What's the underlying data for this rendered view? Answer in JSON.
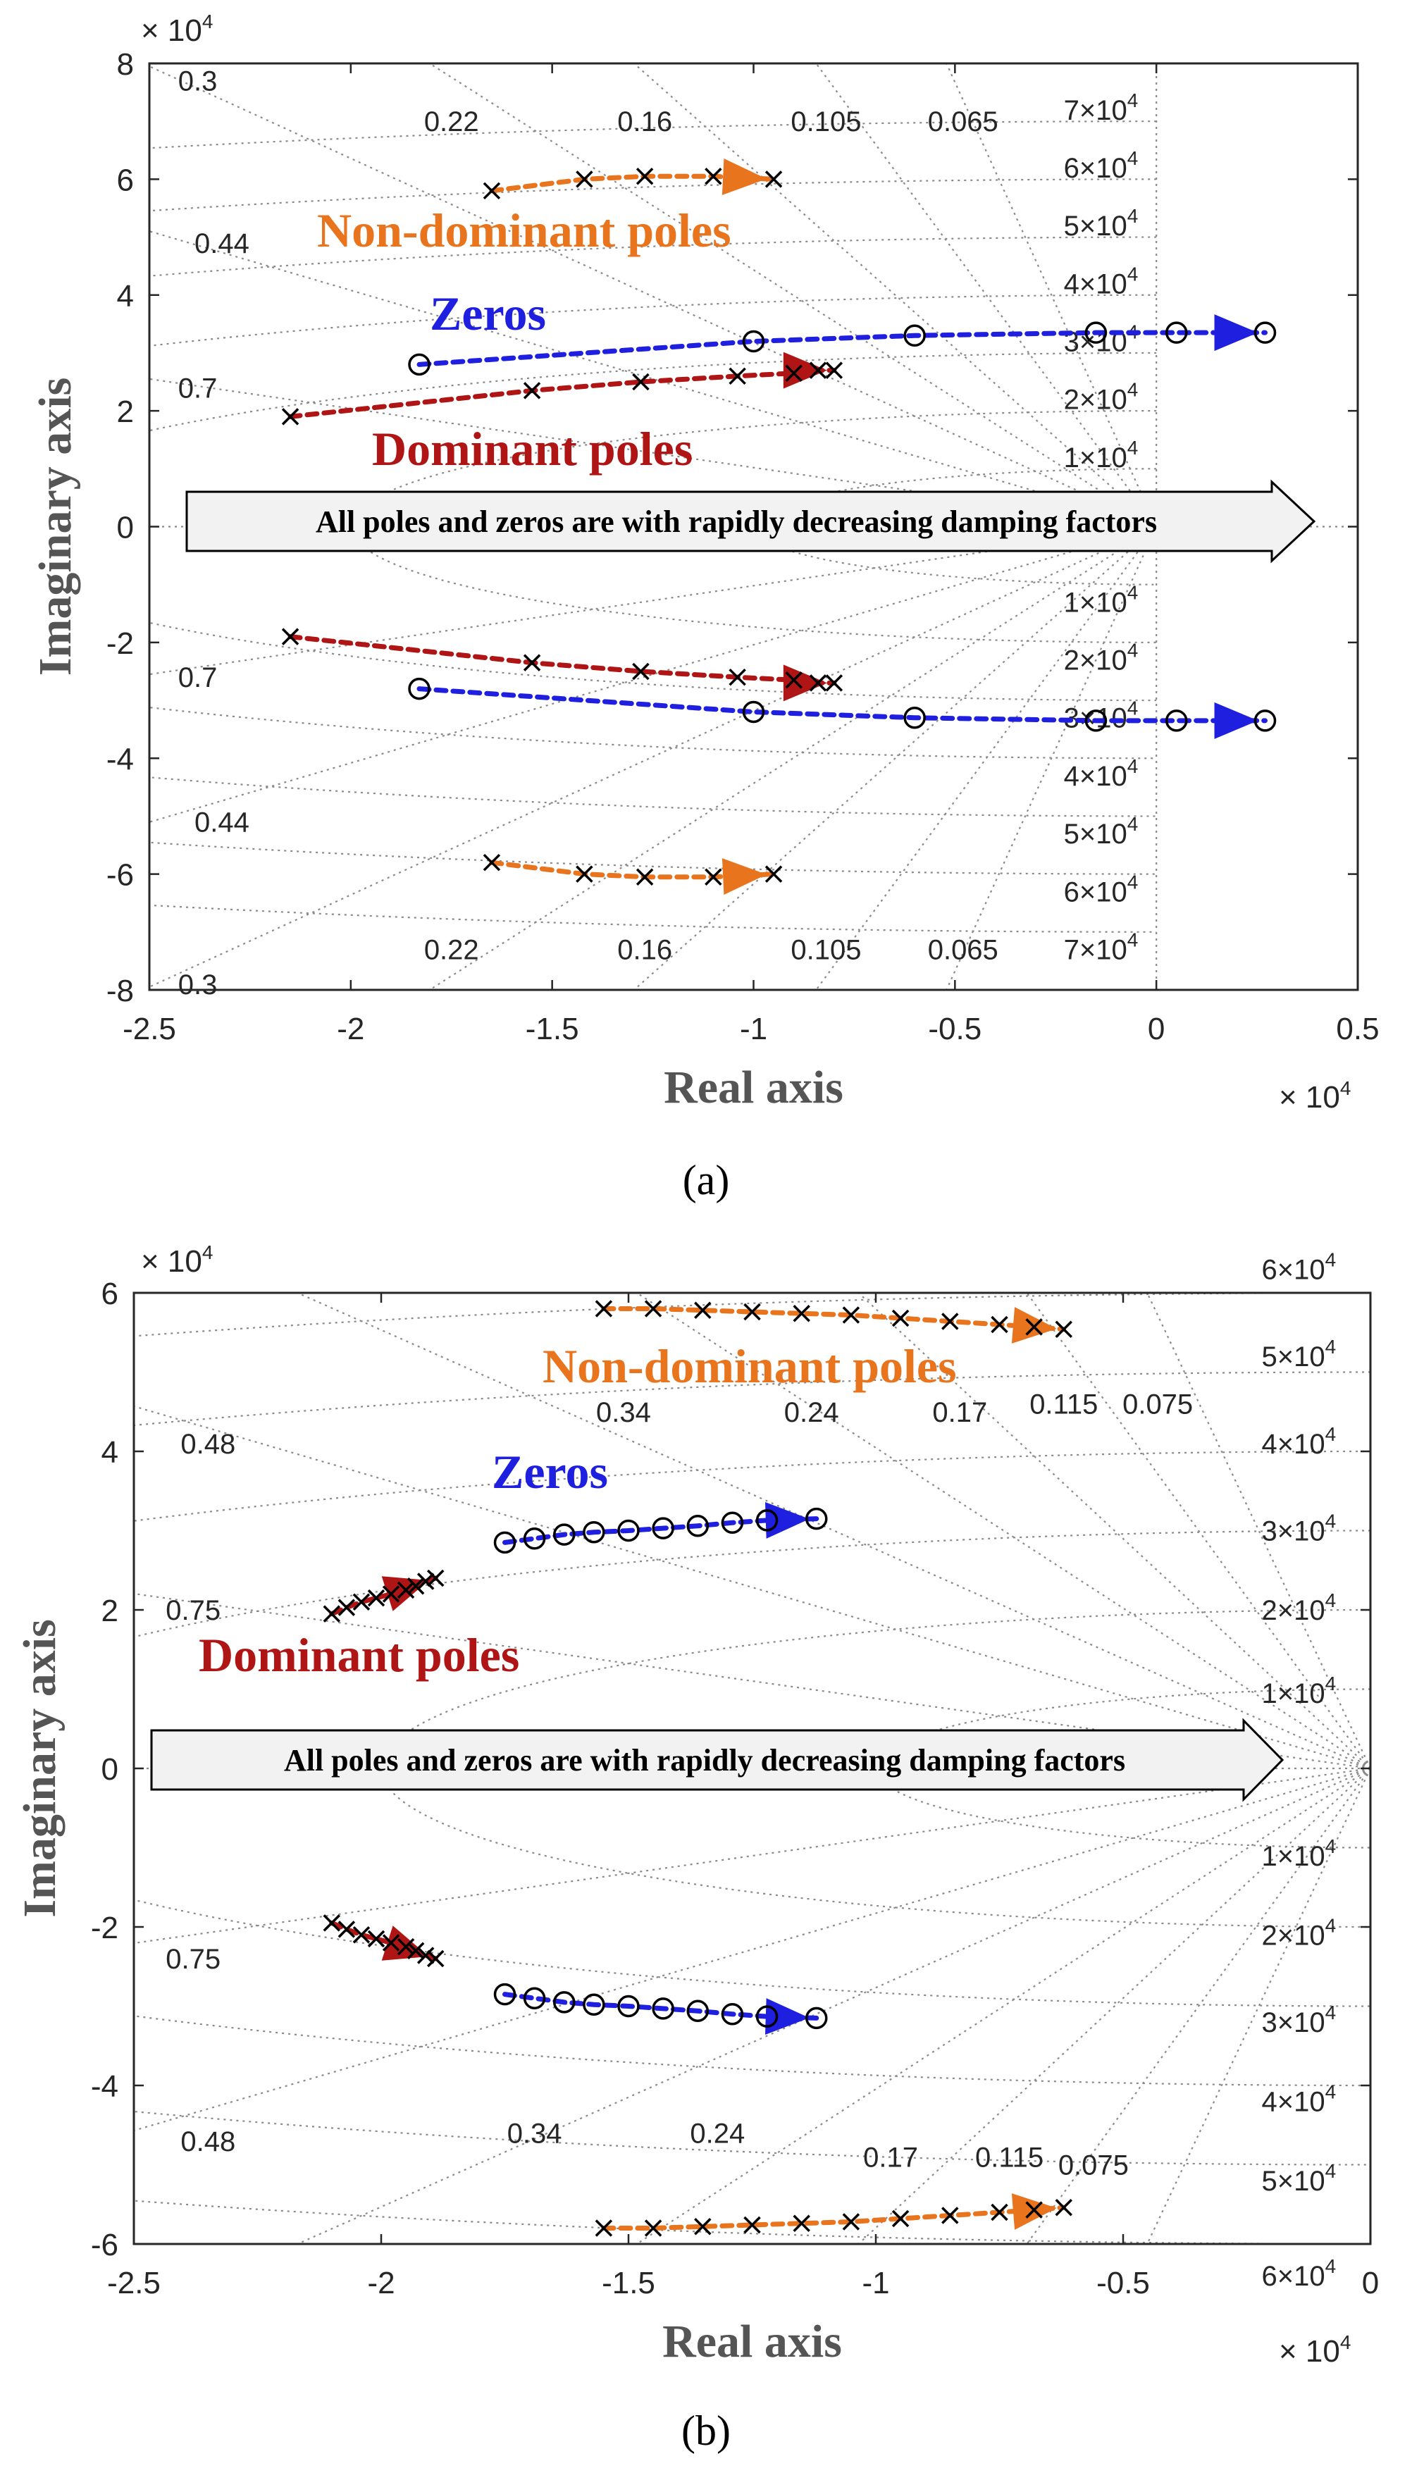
{
  "chart_data": [
    {
      "type": "pole-zero map",
      "panel": "(a)",
      "xlabel": "Real axis",
      "ylabel": "Imaginary axis",
      "x_exponent": "× 10",
      "x_exponent_power": "4",
      "y_exponent": "× 10",
      "y_exponent_power": "4",
      "xlim": [
        -2.5,
        0.5
      ],
      "ylim": [
        -8,
        8
      ],
      "x_ticks": [
        "-2.5",
        "-2",
        "-1.5",
        "-1",
        "-0.5",
        "0",
        "0.5"
      ],
      "x_tick_values": [
        -2.5,
        -2,
        -1.5,
        -1,
        -0.5,
        0,
        0.5
      ],
      "y_ticks": [
        "8",
        "6",
        "4",
        "2",
        "0",
        "-2",
        "-4",
        "-6",
        "-8"
      ],
      "y_tick_values": [
        8,
        6,
        4,
        2,
        0,
        -2,
        -4,
        -6,
        -8
      ],
      "damping_labels": [
        {
          "text": "0.3",
          "x": -2.38,
          "y": 7.7
        },
        {
          "text": "0.22",
          "x": -1.75,
          "y": 7.0
        },
        {
          "text": "0.16",
          "x": -1.27,
          "y": 7.0
        },
        {
          "text": "0.105",
          "x": -0.82,
          "y": 7.0
        },
        {
          "text": "0.065",
          "x": -0.48,
          "y": 7.0
        },
        {
          "text": "0.44",
          "x": -2.32,
          "y": 4.9
        },
        {
          "text": "0.7",
          "x": -2.38,
          "y": 2.4
        },
        {
          "text": "0.7",
          "x": -2.38,
          "y": -2.6
        },
        {
          "text": "0.44",
          "x": -2.32,
          "y": -5.1
        },
        {
          "text": "0.3",
          "x": -2.38,
          "y": -7.9
        },
        {
          "text": "0.22",
          "x": -1.75,
          "y": -7.3
        },
        {
          "text": "0.16",
          "x": -1.27,
          "y": -7.3
        },
        {
          "text": "0.105",
          "x": -0.82,
          "y": -7.3
        },
        {
          "text": "0.065",
          "x": -0.48,
          "y": -7.3
        }
      ],
      "freq_labels": [
        {
          "base": "7×10",
          "exp": "4",
          "y": 7.2
        },
        {
          "base": "6×10",
          "exp": "4",
          "y": 6.2
        },
        {
          "base": "5×10",
          "exp": "4",
          "y": 5.2
        },
        {
          "base": "4×10",
          "exp": "4",
          "y": 4.2
        },
        {
          "base": "3×10",
          "exp": "4",
          "y": 3.2
        },
        {
          "base": "2×10",
          "exp": "4",
          "y": 2.2
        },
        {
          "base": "1×10",
          "exp": "4",
          "y": 1.2
        },
        {
          "base": "1×10",
          "exp": "4",
          "y": -1.3
        },
        {
          "base": "2×10",
          "exp": "4",
          "y": -2.3
        },
        {
          "base": "3×10",
          "exp": "4",
          "y": -3.3
        },
        {
          "base": "4×10",
          "exp": "4",
          "y": -4.3
        },
        {
          "base": "5×10",
          "exp": "4",
          "y": -5.3
        },
        {
          "base": "6×10",
          "exp": "4",
          "y": -6.3
        },
        {
          "base": "7×10",
          "exp": "4",
          "y": -7.3
        }
      ],
      "series": [
        {
          "name": "Non-dominant poles",
          "marker": "x",
          "color": "#E8741E",
          "points": [
            [
              -1.65,
              5.8
            ],
            [
              -1.42,
              6.0
            ],
            [
              -1.27,
              6.05
            ],
            [
              -1.1,
              6.05
            ],
            [
              -0.95,
              6.0
            ]
          ],
          "mirror": true
        },
        {
          "name": "Zeros",
          "marker": "o",
          "color": "#1F1FE0",
          "points": [
            [
              -1.83,
              2.8
            ],
            [
              -1.0,
              3.2
            ],
            [
              -0.6,
              3.3
            ],
            [
              -0.15,
              3.35
            ],
            [
              0.05,
              3.35
            ],
            [
              0.27,
              3.35
            ]
          ],
          "mirror": true
        },
        {
          "name": "Dominant poles",
          "marker": "x",
          "color": "#B01515",
          "points": [
            [
              -2.15,
              1.9
            ],
            [
              -1.55,
              2.35
            ],
            [
              -1.28,
              2.5
            ],
            [
              -1.04,
              2.6
            ],
            [
              -0.9,
              2.65
            ],
            [
              -0.84,
              2.7
            ],
            [
              -0.8,
              2.7
            ]
          ],
          "mirror": true
        }
      ],
      "annotations": {
        "nondominant": "Non-dominant poles",
        "zeros": "Zeros",
        "dominant": "Dominant poles",
        "banner": "All poles and zeros are with rapidly decreasing damping factors"
      },
      "caption": "(a)"
    },
    {
      "type": "pole-zero map",
      "panel": "(b)",
      "xlabel": "Real axis",
      "ylabel": "Imaginary axis",
      "x_exponent": "× 10",
      "x_exponent_power": "4",
      "y_exponent": "× 10",
      "y_exponent_power": "4",
      "xlim": [
        -2.5,
        0
      ],
      "ylim": [
        -6,
        6
      ],
      "x_ticks": [
        "-2.5",
        "-2",
        "-1.5",
        "-1",
        "-0.5",
        "0"
      ],
      "x_tick_values": [
        -2.5,
        -2,
        -1.5,
        -1,
        -0.5,
        0
      ],
      "y_ticks": [
        "6",
        "4",
        "2",
        "0",
        "-2",
        "-4",
        "-6"
      ],
      "y_tick_values": [
        6,
        4,
        2,
        0,
        -2,
        -4,
        -6
      ],
      "damping_labels": [
        {
          "text": "0.48",
          "x": -2.35,
          "y": 4.1
        },
        {
          "text": "0.34",
          "x": -1.51,
          "y": 4.5
        },
        {
          "text": "0.24",
          "x": -1.13,
          "y": 4.5
        },
        {
          "text": "0.17",
          "x": -0.83,
          "y": 4.5
        },
        {
          "text": "0.115",
          "x": -0.62,
          "y": 4.6
        },
        {
          "text": "0.075",
          "x": -0.43,
          "y": 4.6
        },
        {
          "text": "0.75",
          "x": -2.38,
          "y": 2.0
        },
        {
          "text": "0.75",
          "x": -2.38,
          "y": -2.4
        },
        {
          "text": "0.48",
          "x": -2.35,
          "y": -4.7
        },
        {
          "text": "0.34",
          "x": -1.69,
          "y": -4.6
        },
        {
          "text": "0.24",
          "x": -1.32,
          "y": -4.6
        },
        {
          "text": "0.17",
          "x": -0.97,
          "y": -4.9
        },
        {
          "text": "0.115",
          "x": -0.73,
          "y": -4.9
        },
        {
          "text": "0.075",
          "x": -0.56,
          "y": -5.0
        }
      ],
      "freq_labels": [
        {
          "base": "6×10",
          "exp": "4",
          "y": 6.3
        },
        {
          "base": "5×10",
          "exp": "4",
          "y": 5.2
        },
        {
          "base": "4×10",
          "exp": "4",
          "y": 4.1
        },
        {
          "base": "3×10",
          "exp": "4",
          "y": 3.0
        },
        {
          "base": "2×10",
          "exp": "4",
          "y": 2.0
        },
        {
          "base": "1×10",
          "exp": "4",
          "y": 0.95
        },
        {
          "base": "1×10",
          "exp": "4",
          "y": -1.1
        },
        {
          "base": "2×10",
          "exp": "4",
          "y": -2.1
        },
        {
          "base": "3×10",
          "exp": "4",
          "y": -3.2
        },
        {
          "base": "4×10",
          "exp": "4",
          "y": -4.2
        },
        {
          "base": "5×10",
          "exp": "4",
          "y": -5.2
        },
        {
          "base": "6×10",
          "exp": "4",
          "y": -6.4
        }
      ],
      "series": [
        {
          "name": "Non-dominant poles",
          "marker": "x",
          "color": "#E8741E",
          "points": [
            [
              -1.55,
              5.8
            ],
            [
              -1.45,
              5.8
            ],
            [
              -1.35,
              5.78
            ],
            [
              -1.25,
              5.76
            ],
            [
              -1.15,
              5.74
            ],
            [
              -1.05,
              5.72
            ],
            [
              -0.95,
              5.68
            ],
            [
              -0.85,
              5.64
            ],
            [
              -0.75,
              5.6
            ],
            [
              -0.68,
              5.57
            ],
            [
              -0.62,
              5.54
            ]
          ],
          "mirror": true
        },
        {
          "name": "Zeros",
          "marker": "o",
          "color": "#1F1FE0",
          "points": [
            [
              -1.75,
              2.85
            ],
            [
              -1.69,
              2.9
            ],
            [
              -1.63,
              2.95
            ],
            [
              -1.57,
              2.98
            ],
            [
              -1.5,
              3.0
            ],
            [
              -1.43,
              3.03
            ],
            [
              -1.36,
              3.06
            ],
            [
              -1.29,
              3.1
            ],
            [
              -1.22,
              3.13
            ],
            [
              -1.12,
              3.15
            ]
          ],
          "mirror": true
        },
        {
          "name": "Dominant poles",
          "marker": "x",
          "color": "#B01515",
          "points": [
            [
              -2.1,
              1.95
            ],
            [
              -2.07,
              2.03
            ],
            [
              -2.04,
              2.1
            ],
            [
              -2.01,
              2.15
            ],
            [
              -1.98,
              2.2
            ],
            [
              -1.95,
              2.25
            ],
            [
              -1.93,
              2.3
            ],
            [
              -1.91,
              2.36
            ],
            [
              -1.89,
              2.4
            ]
          ],
          "mirror": true
        }
      ],
      "annotations": {
        "nondominant": "Non-dominant poles",
        "zeros": "Zeros",
        "dominant": "Dominant poles",
        "banner": "All poles and zeros are with rapidly decreasing damping factors"
      },
      "caption": "(b)"
    }
  ]
}
